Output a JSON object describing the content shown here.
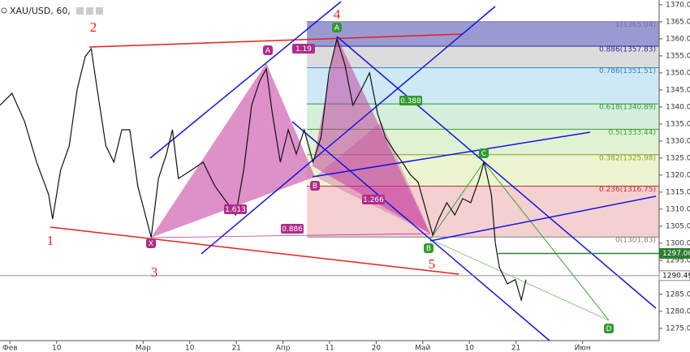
{
  "chart_data": {
    "type": "line",
    "title": "XAU/USD, 60,",
    "color": "#111111",
    "xlim": [
      -1.5,
      97.5
    ],
    "ylim": [
      1271.4,
      1371.4
    ],
    "xticks": [
      {
        "value": 0,
        "label": "Фев"
      },
      {
        "value": 7,
        "label": "10"
      },
      {
        "value": 20,
        "label": "Мар"
      },
      {
        "value": 27,
        "label": "10"
      },
      {
        "value": 34,
        "label": "21"
      },
      {
        "value": 41,
        "label": "Апр"
      },
      {
        "value": 48,
        "label": "11"
      },
      {
        "value": 55,
        "label": "20"
      },
      {
        "value": 62,
        "label": "Май"
      },
      {
        "value": 69,
        "label": "10"
      },
      {
        "value": 76,
        "label": "21"
      },
      {
        "value": 86,
        "label": "Июн"
      }
    ],
    "yticks": [
      {
        "value": 1275,
        "label": "1275.00"
      },
      {
        "value": 1280,
        "label": "1280.00"
      },
      {
        "value": 1285,
        "label": "1285.00"
      },
      {
        "value": 1290,
        "label": "1290.00"
      },
      {
        "value": 1295,
        "label": "1295.00"
      },
      {
        "value": 1300,
        "label": "1300.00"
      },
      {
        "value": 1305,
        "label": "1305.00"
      },
      {
        "value": 1310,
        "label": "1310.00"
      },
      {
        "value": 1315,
        "label": "1315.00"
      },
      {
        "value": 1320,
        "label": "1320.00"
      },
      {
        "value": 1325,
        "label": "1325.00"
      },
      {
        "value": 1330,
        "label": "1330.00"
      },
      {
        "value": 1335,
        "label": "1335.00"
      },
      {
        "value": 1340,
        "label": "1340.00"
      },
      {
        "value": 1345,
        "label": "1345.00"
      },
      {
        "value": 1350,
        "label": "1350.00"
      },
      {
        "value": 1355,
        "label": "1355.00"
      },
      {
        "value": 1360,
        "label": "1360.00"
      },
      {
        "value": 1365,
        "label": "1365.00"
      },
      {
        "value": 1370,
        "label": "1370.00"
      }
    ],
    "x": [
      -1.5,
      0.3,
      2.2,
      4.0,
      5.8,
      6.4,
      7.6,
      8.9,
      10.1,
      11.3,
      12.2,
      13.1,
      14.4,
      15.6,
      16.8,
      18.0,
      19.2,
      20.5,
      21.2,
      22.3,
      23.5,
      24.4,
      25.3,
      27.2,
      29.0,
      30.8,
      32.6,
      33.9,
      35.1,
      36.3,
      37.5,
      38.5,
      39.4,
      40.6,
      41.8,
      43.0,
      44.2,
      45.5,
      46.7,
      47.9,
      49.1,
      50.3,
      51.5,
      52.8,
      54.0,
      55.2,
      56.4,
      57.6,
      58.9,
      60.1,
      61.3,
      62.5,
      63.5,
      64.4,
      65.6,
      66.8,
      68.0,
      69.2,
      70.5,
      71.2,
      72.3,
      72.9,
      73.5,
      74.7,
      75.9,
      76.8,
      77.5
    ],
    "values": [
      1340.5,
      1344,
      1335.7,
      1323.8,
      1314.3,
      1307.1,
      1321.4,
      1328.6,
      1345.2,
      1354.8,
      1357.1,
      1345.2,
      1328.6,
      1323.8,
      1333.3,
      1333.3,
      1316.7,
      1307.1,
      1301.7,
      1319,
      1326.2,
      1333.3,
      1319,
      1321.4,
      1323.8,
      1316.7,
      1311.9,
      1308.3,
      1321.4,
      1340.5,
      1347.6,
      1351.2,
      1338.1,
      1323.8,
      1333.3,
      1326.2,
      1333.3,
      1323.8,
      1331,
      1350,
      1360,
      1352.4,
      1340.5,
      1345.2,
      1350,
      1338.1,
      1331,
      1327.4,
      1323.8,
      1320.2,
      1317.9,
      1309.5,
      1302.4,
      1307.1,
      1311.9,
      1308.3,
      1313.1,
      1311.9,
      1319,
      1323.8,
      1314.3,
      1300,
      1292.9,
      1288.1,
      1289.3,
      1283.3,
      1289.3
    ],
    "fib": {
      "x_start": 44.6,
      "levels": [
        {
          "value": 1365.04,
          "label": "1(1365.04)",
          "color": "#6f6fb8",
          "band": "#8888c8"
        },
        {
          "value": 1357.83,
          "label": "0.886(1357.83)",
          "color": "#2a2aa0",
          "band": "#d6d6d6"
        },
        {
          "value": 1351.51,
          "label": "0.786(1351.51)",
          "color": "#3a80c0",
          "band": "#c6e4f4"
        },
        {
          "value": 1340.89,
          "label": "0.618(1340.89)",
          "color": "#2c9a3c",
          "band": "#cfecd6"
        },
        {
          "value": 1333.44,
          "label": "0.5(1333.44)",
          "color": "#3aa040",
          "band": "#d9f0cc"
        },
        {
          "value": 1325.98,
          "label": "0.382(1325.98)",
          "color": "#8aa020",
          "band": "#e8f3c8"
        },
        {
          "value": 1316.75,
          "label": "0.236(1316.75)",
          "color": "#c03030",
          "band": "#f2c8c8"
        },
        {
          "value": 1301.83,
          "label": "0(1301.83)",
          "color": "#808080",
          "band": null
        }
      ]
    },
    "price_lines": [
      {
        "value": 1297,
        "label": "1297.00",
        "color": "#2e7d32",
        "x_start": 73.3
      },
      {
        "value": 1290.49,
        "label": "1290.49",
        "color": "#888888",
        "x_start": -1.5
      }
    ],
    "waves": [
      "1",
      "2",
      "3",
      "4",
      "5"
    ],
    "points": [
      "X",
      "A",
      "B",
      "A",
      "B",
      "C",
      "D"
    ],
    "ratios": [
      "1.19",
      "0.388",
      "1.266",
      "0.886",
      "1.613"
    ]
  }
}
